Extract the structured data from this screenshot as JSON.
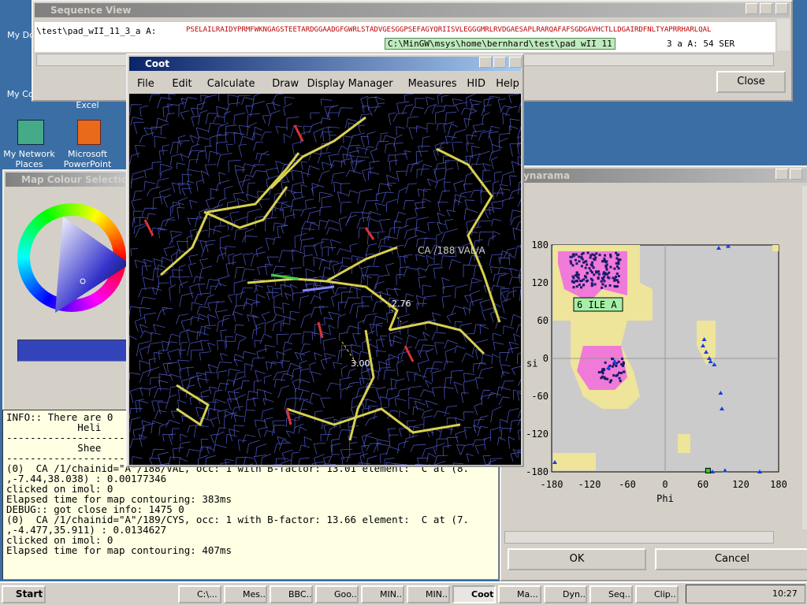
{
  "desktop": {
    "icons": [
      "My Docu",
      "My Com",
      "Excel",
      "My Network Places",
      "Microsoft PowerPoint"
    ]
  },
  "sequence_view": {
    "title": "Sequence View",
    "sequence_label": "\\test\\pad_wII_11_3_a A:",
    "sequence": "PSELAILRAIDYPRMFWKNGAGSTEETARDGGAADGFGWRLSTADVGESGGPSEFAGYQRIISVLEGGGMRLRVDGAESAPLRARQAFAFSGDGAVHCTLLDGAIRDFNLTYAPRRHARLQAL",
    "tooltip": "C:\\MinGW\\msys\\home\\bernhard\\test\\pad wII 11",
    "status": "3 a A: 54 SER",
    "close": "Close"
  },
  "coot": {
    "title": "Coot",
    "menu": [
      "File",
      "Edit",
      "Calculate",
      "Draw",
      "Display Manager",
      "Measures",
      "HID",
      "Help"
    ],
    "atom_label": "CA /188 VAL/A",
    "distances": [
      "2.76",
      "3.00"
    ]
  },
  "map_colour": {
    "title": "Map Colour Selection"
  },
  "console": {
    "lines": [
      "INFO:: There are 0",
      "            Heli",
      "---------------------------------",
      "            Shee",
      "---------------------------------",
      "(0)  CA /1/chainid=\"A\"/188/VAL, occ: 1 with B-factor: 13.01 element:  C at (8.",
      ",-7.44,38.038) : 0.00177346",
      "clicked on imol: 0",
      "Elapsed time for map contouring: 383ms",
      "DEBUG:: got close info: 1475 0",
      "(0)  CA /1/chainid=\"A\"/189/CYS, occ: 1 with B-factor: 13.66 element:  C at (7.",
      ",-4.477,35.911) : 0.0134627",
      "clicked on imol: 0",
      "Elapsed time for map contouring: 407ms"
    ]
  },
  "ramachandran": {
    "title": "ynarama",
    "residue_label": "6 ILE A",
    "x_label": "Phi",
    "y_label": "si",
    "xticks": [
      -180,
      -120,
      -60,
      0,
      60,
      120,
      180
    ],
    "yticks": [
      180,
      120,
      60,
      0,
      -60,
      -120,
      -180
    ],
    "ok": "OK",
    "cancel": "Cancel"
  },
  "taskbar": {
    "start": "Start",
    "items": [
      "C:\\...",
      "Mes...",
      "BBC...",
      "Goo...",
      "MIN...",
      "MIN...",
      "Coot",
      "Ma...",
      "Dyn...",
      "Seq...",
      "Clip..."
    ],
    "clock": "10:27"
  }
}
